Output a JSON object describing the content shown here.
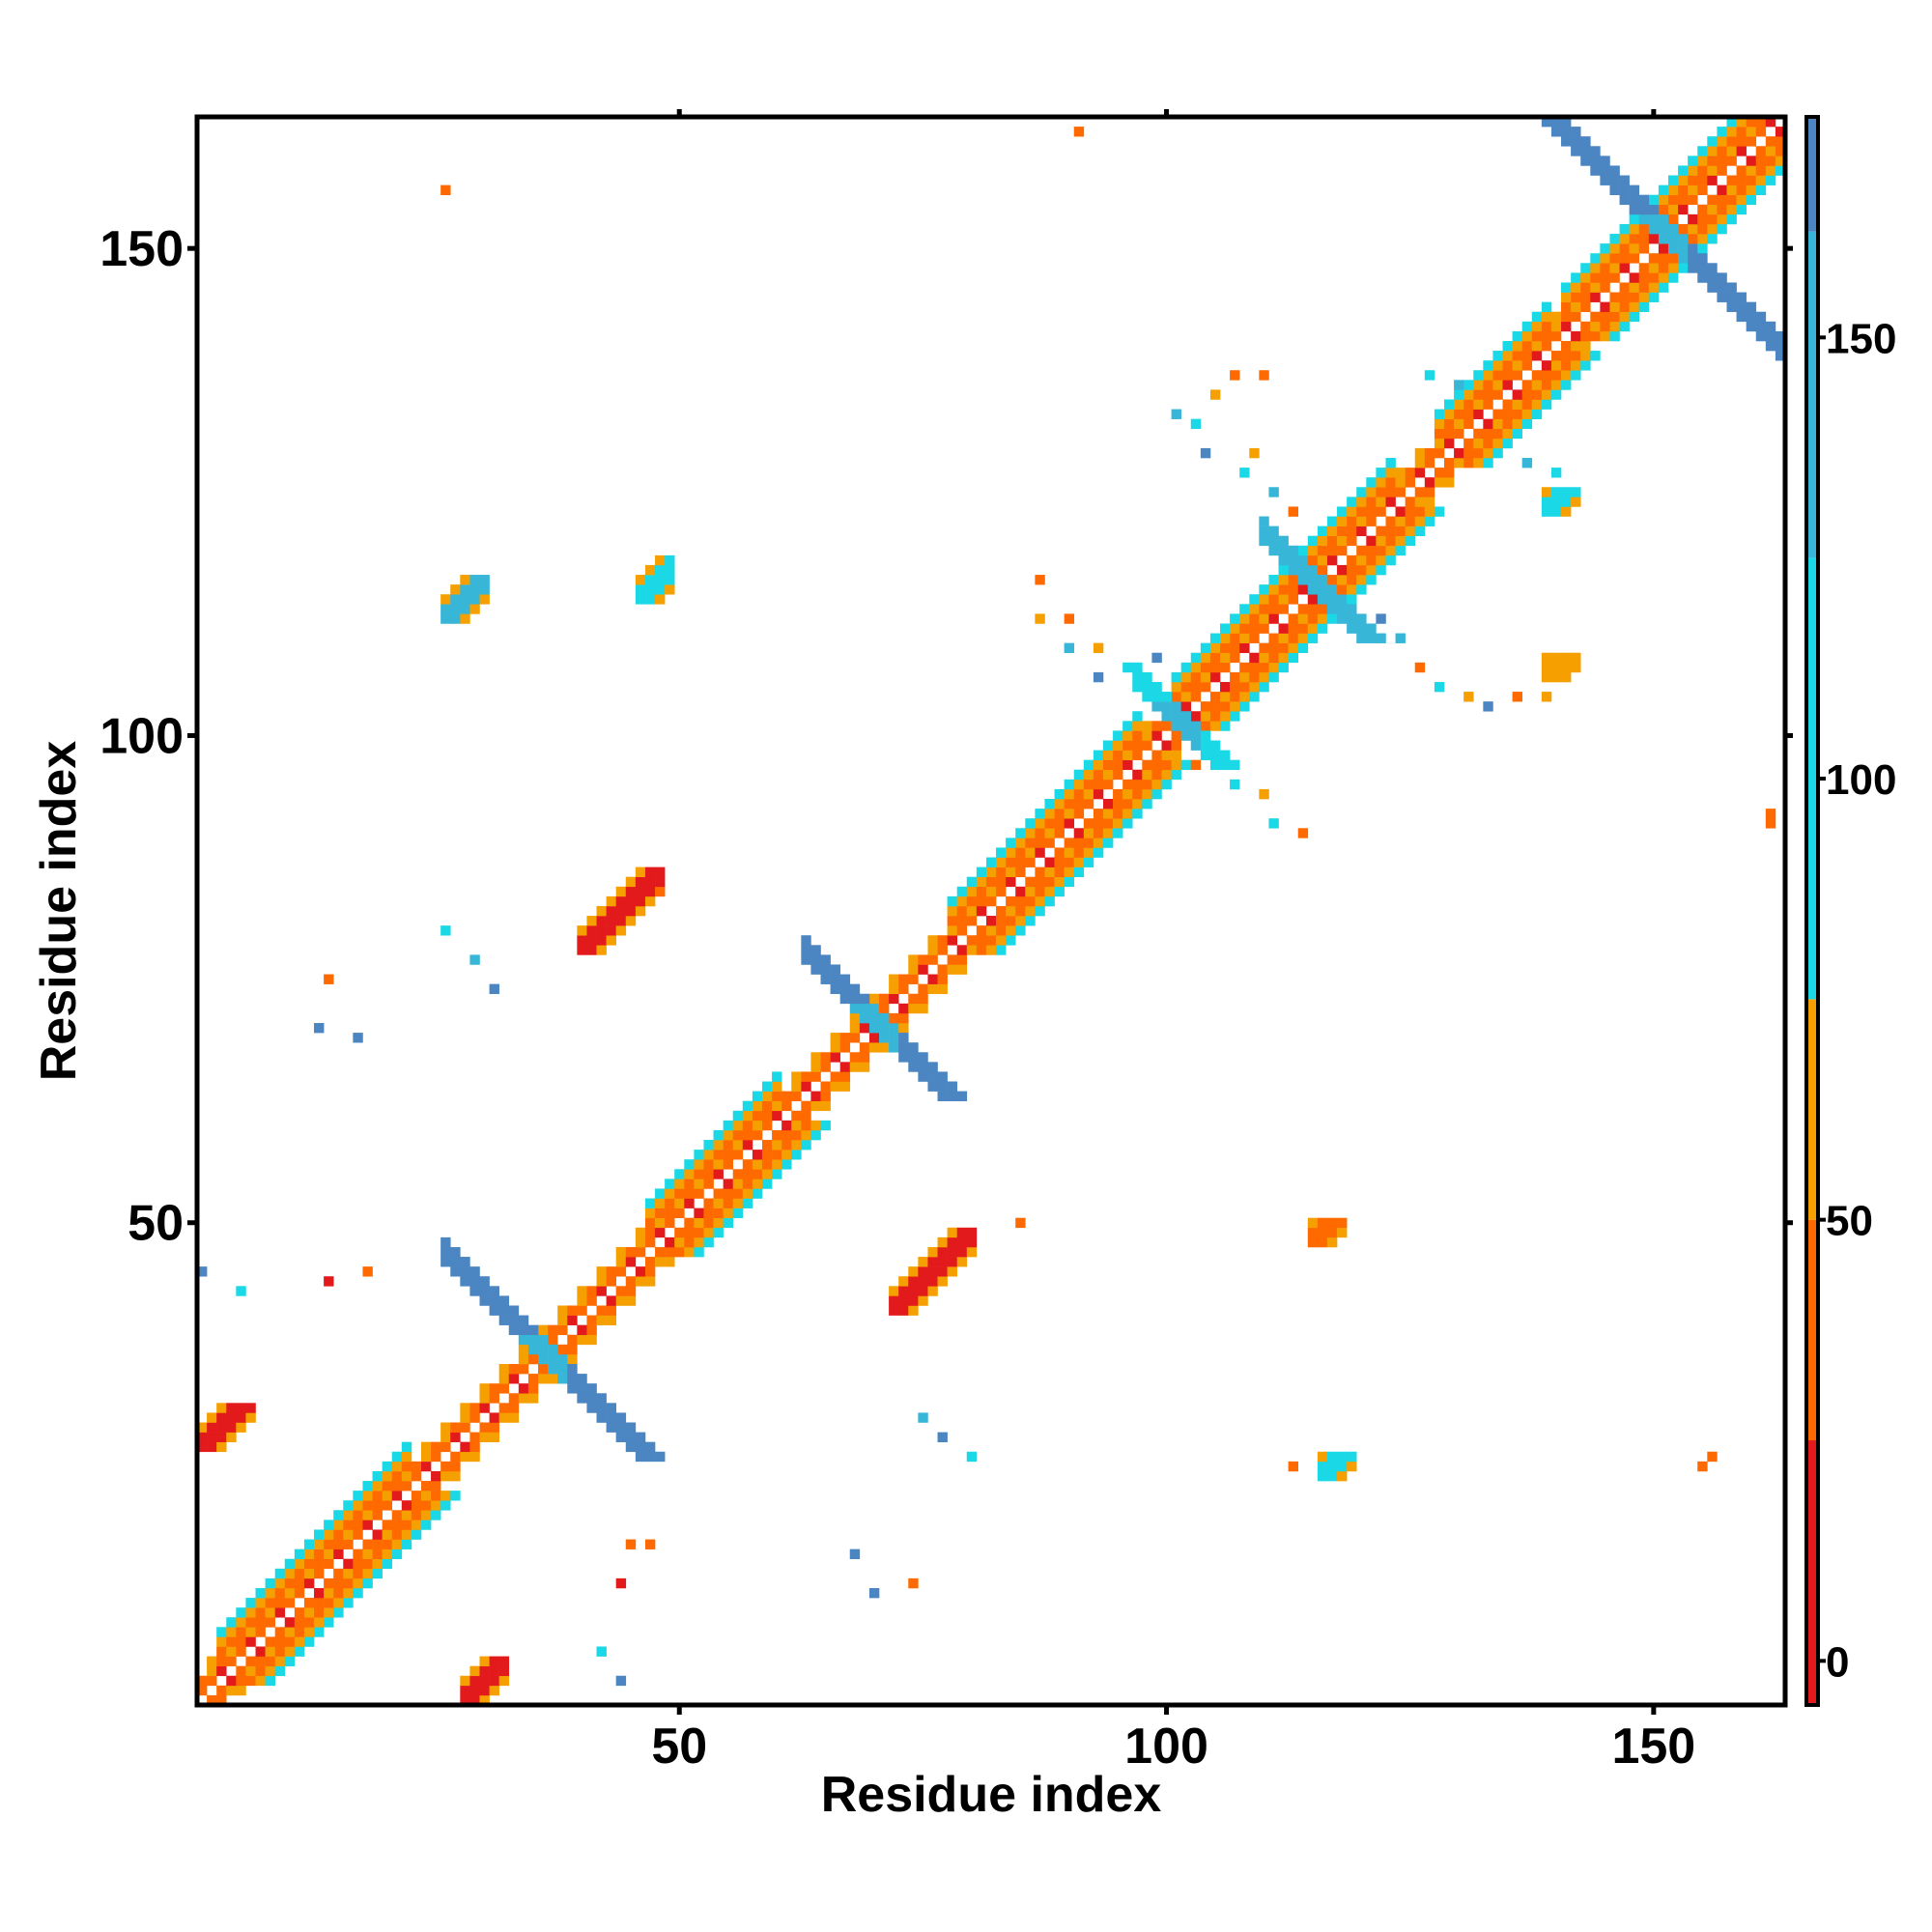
{
  "chart_data": {
    "type": "heatmap",
    "title": "",
    "xlabel": "Residue index",
    "ylabel": "Residue index",
    "xlim": [
      1,
      163
    ],
    "ylim": [
      1,
      163
    ],
    "x_ticks": [
      50,
      100,
      150
    ],
    "y_ticks": [
      50,
      100,
      150
    ],
    "grid": false,
    "colorbar": {
      "ticks": [
        0,
        50,
        100,
        150
      ],
      "range": [
        -5,
        175
      ],
      "segments": [
        {
          "from": -5,
          "to": 25,
          "color": "#e31a1c"
        },
        {
          "from": 25,
          "to": 50,
          "color": "#ff6a00"
        },
        {
          "from": 50,
          "to": 75,
          "color": "#f5a000"
        },
        {
          "from": 75,
          "to": 125,
          "color": "#1ad8e6"
        },
        {
          "from": 125,
          "to": 162,
          "color": "#38b6d8"
        },
        {
          "from": 162,
          "to": 175,
          "color": "#4b86c2"
        }
      ],
      "empty_color": "#ffffff"
    },
    "colors": {
      "red": "#e31a1c",
      "orange_red": "#ff6a00",
      "orange": "#f5a000",
      "cyan": "#1ad8e6",
      "sky": "#38b6d8",
      "steel": "#4b86c2"
    },
    "diagonal_band_width": 5,
    "helix_segments": [
      {
        "start": 3,
        "end": 22
      },
      {
        "start": 47,
        "end": 60
      },
      {
        "start": 78,
        "end": 97
      },
      {
        "start": 101,
        "end": 123
      },
      {
        "start": 128,
        "end": 139
      },
      {
        "start": 141,
        "end": 160
      }
    ],
    "antidiagonal_crosses": [
      {
        "center": [
          36,
          36
        ],
        "half_length": 10,
        "color": "steel"
      },
      {
        "center": [
          70,
          70
        ],
        "half_length": 7,
        "color": "steel"
      },
      {
        "center": [
          151,
          151
        ],
        "half_length": 12,
        "color": "steel"
      },
      {
        "center": [
          115,
          115
        ],
        "half_length": 5,
        "color": "sky"
      },
      {
        "center": [
          101,
          101
        ],
        "half_length": 4,
        "color": "cyan"
      }
    ],
    "contact_patches": [
      {
        "x": [
          40,
          48
        ],
        "y": [
          78,
          86
        ],
        "color": "red"
      },
      {
        "x": [
          72,
          80
        ],
        "y": [
          41,
          49
        ],
        "color": "red"
      },
      {
        "x": [
          26,
          30
        ],
        "y": [
          112,
          116
        ],
        "color": "sky"
      },
      {
        "x": [
          46,
          49
        ],
        "y": [
          114,
          118
        ],
        "color": "cyan"
      },
      {
        "x": [
          1,
          6
        ],
        "y": [
          27,
          31
        ],
        "color": "red"
      },
      {
        "x": [
          28,
          32
        ],
        "y": [
          1,
          5
        ],
        "color": "red"
      },
      {
        "x": [
          115,
          118
        ],
        "y": [
          48,
          50
        ],
        "color": "orange_red"
      },
      {
        "x": [
          116,
          119
        ],
        "y": [
          24,
          26
        ],
        "color": "cyan"
      },
      {
        "x": [
          139,
          142
        ],
        "y": [
          106,
          108
        ],
        "color": "orange"
      },
      {
        "x": [
          139,
          142
        ],
        "y": [
          123,
          125
        ],
        "color": "cyan"
      }
    ],
    "scattered_contacts": [
      {
        "x": 26,
        "y": 156,
        "color": "orange_red"
      },
      {
        "x": 91,
        "y": 162,
        "color": "orange_red"
      },
      {
        "x": 156,
        "y": 26,
        "color": "orange_red"
      },
      {
        "x": 162,
        "y": 91,
        "color": "orange_red"
      },
      {
        "x": 14,
        "y": 75,
        "color": "orange_red"
      },
      {
        "x": 13,
        "y": 70,
        "color": "steel"
      },
      {
        "x": 17,
        "y": 69,
        "color": "steel"
      },
      {
        "x": 26,
        "y": 80,
        "color": "cyan"
      },
      {
        "x": 29,
        "y": 77,
        "color": "sky"
      },
      {
        "x": 31,
        "y": 74,
        "color": "steel"
      },
      {
        "x": 48,
        "y": 84,
        "color": "orange_red"
      },
      {
        "x": 75,
        "y": 30,
        "color": "sky"
      },
      {
        "x": 77,
        "y": 28,
        "color": "steel"
      },
      {
        "x": 80,
        "y": 26,
        "color": "cyan"
      },
      {
        "x": 68,
        "y": 16,
        "color": "steel"
      },
      {
        "x": 70,
        "y": 12,
        "color": "steel"
      },
      {
        "x": 74,
        "y": 13,
        "color": "orange_red"
      },
      {
        "x": 42,
        "y": 6,
        "color": "cyan"
      },
      {
        "x": 44,
        "y": 3,
        "color": "steel"
      },
      {
        "x": 44,
        "y": 13,
        "color": "red"
      },
      {
        "x": 45,
        "y": 17,
        "color": "orange_red"
      },
      {
        "x": 47,
        "y": 17,
        "color": "orange_red"
      },
      {
        "x": 1,
        "y": 45,
        "color": "steel"
      },
      {
        "x": 5,
        "y": 43,
        "color": "cyan"
      },
      {
        "x": 14,
        "y": 44,
        "color": "red"
      },
      {
        "x": 18,
        "y": 45,
        "color": "orange_red"
      },
      {
        "x": 85,
        "y": 50,
        "color": "orange_red"
      },
      {
        "x": 113,
        "y": 25,
        "color": "orange_red"
      },
      {
        "x": 155,
        "y": 25,
        "color": "orange_red"
      },
      {
        "x": 162,
        "y": 92,
        "color": "orange_red"
      },
      {
        "x": 87,
        "y": 116,
        "color": "orange_red"
      },
      {
        "x": 87,
        "y": 112,
        "color": "orange"
      },
      {
        "x": 90,
        "y": 112,
        "color": "orange_red"
      },
      {
        "x": 90,
        "y": 109,
        "color": "sky"
      },
      {
        "x": 93,
        "y": 109,
        "color": "orange"
      },
      {
        "x": 93,
        "y": 106,
        "color": "steel"
      },
      {
        "x": 96,
        "y": 107,
        "color": "cyan"
      },
      {
        "x": 99,
        "y": 108,
        "color": "steel"
      },
      {
        "x": 103,
        "y": 97,
        "color": "orange_red"
      },
      {
        "x": 107,
        "y": 95,
        "color": "cyan"
      },
      {
        "x": 110,
        "y": 94,
        "color": "orange"
      },
      {
        "x": 111,
        "y": 91,
        "color": "cyan"
      },
      {
        "x": 114,
        "y": 90,
        "color": "orange_red"
      },
      {
        "x": 101,
        "y": 133,
        "color": "sky"
      },
      {
        "x": 103,
        "y": 132,
        "color": "cyan"
      },
      {
        "x": 105,
        "y": 135,
        "color": "orange"
      },
      {
        "x": 107,
        "y": 137,
        "color": "orange_red"
      },
      {
        "x": 110,
        "y": 137,
        "color": "orange_red"
      },
      {
        "x": 104,
        "y": 129,
        "color": "steel"
      },
      {
        "x": 108,
        "y": 127,
        "color": "cyan"
      },
      {
        "x": 109,
        "y": 129,
        "color": "orange"
      },
      {
        "x": 111,
        "y": 125,
        "color": "sky"
      },
      {
        "x": 113,
        "y": 123,
        "color": "orange_red"
      },
      {
        "x": 122,
        "y": 112,
        "color": "steel"
      },
      {
        "x": 124,
        "y": 110,
        "color": "sky"
      },
      {
        "x": 126,
        "y": 107,
        "color": "orange_red"
      },
      {
        "x": 128,
        "y": 105,
        "color": "cyan"
      },
      {
        "x": 131,
        "y": 104,
        "color": "orange"
      },
      {
        "x": 133,
        "y": 103,
        "color": "steel"
      },
      {
        "x": 136,
        "y": 104,
        "color": "orange_red"
      },
      {
        "x": 139,
        "y": 104,
        "color": "orange"
      },
      {
        "x": 127,
        "y": 137,
        "color": "cyan"
      },
      {
        "x": 130,
        "y": 136,
        "color": "sky"
      },
      {
        "x": 137,
        "y": 128,
        "color": "sky"
      },
      {
        "x": 140,
        "y": 127,
        "color": "cyan"
      }
    ]
  }
}
